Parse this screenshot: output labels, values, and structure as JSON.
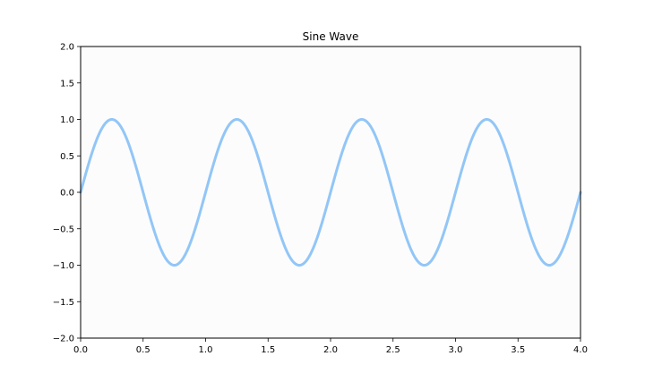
{
  "chart_data": {
    "type": "line",
    "title": "Sine Wave",
    "xlabel": "",
    "ylabel": "",
    "xlim": [
      0.0,
      4.0
    ],
    "ylim": [
      -2.0,
      2.0
    ],
    "x_ticks": [
      0.0,
      0.5,
      1.0,
      1.5,
      2.0,
      2.5,
      3.0,
      3.5,
      4.0
    ],
    "x_tick_labels": [
      "0.0",
      "0.5",
      "1.0",
      "1.5",
      "2.0",
      "2.5",
      "3.0",
      "3.5",
      "4.0"
    ],
    "y_ticks": [
      -2.0,
      -1.5,
      -1.0,
      -0.5,
      0.0,
      0.5,
      1.0,
      1.5,
      2.0
    ],
    "y_tick_labels": [
      "−2.0",
      "−1.5",
      "−1.0",
      "−0.5",
      "0.0",
      "0.5",
      "1.0",
      "1.5",
      "2.0"
    ],
    "grid": false,
    "legend": "none",
    "series": [
      {
        "function": "sin(2*pi*x)",
        "frequency_cycles_per_unit": 1,
        "amplitude": 1.0,
        "x": [
          0.0,
          0.25,
          0.5,
          0.75,
          1.0,
          1.25,
          1.5,
          1.75,
          2.0,
          2.25,
          2.5,
          2.75,
          3.0,
          3.25,
          3.5,
          3.75,
          4.0
        ],
        "values": [
          0.0,
          1.0,
          0.0,
          -1.0,
          0.0,
          1.0,
          0.0,
          -1.0,
          0.0,
          1.0,
          0.0,
          -1.0,
          0.0,
          1.0,
          0.0,
          -1.0,
          0.0
        ],
        "color": "#92c6f7"
      }
    ],
    "colors": {
      "plot_background": "#fcfcfc",
      "figure_background": "#ffffff",
      "axes": "#000000"
    }
  }
}
